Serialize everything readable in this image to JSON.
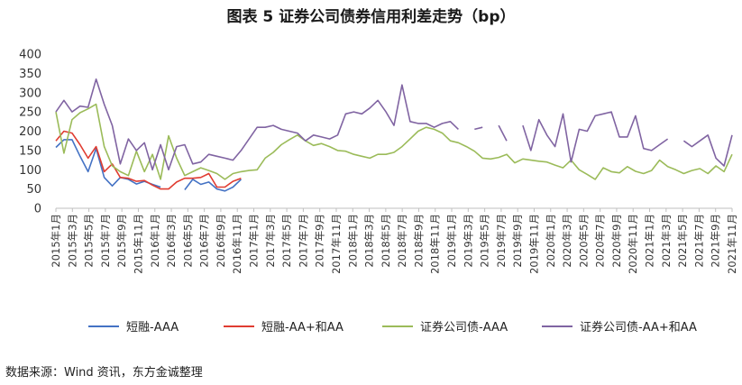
{
  "title": "图表 5  证券公司债券信用利差走势（bp）",
  "source": "数据来源：Wind 资讯，东方金诚整理",
  "chart_data": {
    "type": "line",
    "title": "图表 5  证券公司债券信用利差走势（bp）",
    "ylabel": "",
    "xlabel": "",
    "ylim": [
      0,
      400
    ],
    "yticks": [
      0,
      50,
      100,
      150,
      200,
      250,
      300,
      350,
      400
    ],
    "grid": false,
    "legend_position": "bottom",
    "x_tick_labels": [
      "2015年1月",
      "2015年3月",
      "2015年5月",
      "2015年7月",
      "2015年9月",
      "2015年11月",
      "2016年1月",
      "2016年3月",
      "2016年5月",
      "2016年7月",
      "2016年9月",
      "2016年11月",
      "2017年1月",
      "2017年3月",
      "2017年5月",
      "2017年7月",
      "2017年9月",
      "2017年11月",
      "2018年1月",
      "2018年3月",
      "2018年5月",
      "2018年7月",
      "2018年9月",
      "2018年11月",
      "2019年1月",
      "2019年3月",
      "2019年5月",
      "2019年7月",
      "2019年9月",
      "2019年11月",
      "2020年1月",
      "2020年3月",
      "2020年5月",
      "2020年7月",
      "2020年9月",
      "2020年11月",
      "2021年1月",
      "2021年3月",
      "2021年5月",
      "2021年7月",
      "2021年9月",
      "2021年11月"
    ],
    "series": [
      {
        "name": "短融-AAA",
        "color": "#4472C4",
        "values": [
          158,
          178,
          178,
          135,
          95,
          155,
          80,
          58,
          80,
          75,
          63,
          70,
          62,
          55,
          null,
          null,
          48,
          75,
          62,
          68,
          50,
          45,
          55,
          75,
          null,
          null,
          null,
          null,
          null,
          null,
          null,
          null,
          null,
          null,
          null,
          null,
          null,
          null,
          null,
          null,
          null,
          null,
          null,
          null,
          null,
          null,
          null,
          null,
          null,
          null,
          null,
          null,
          null,
          null,
          null,
          null,
          null,
          null,
          null,
          null,
          null,
          null,
          null,
          null,
          null,
          null,
          null,
          null,
          null,
          null,
          null,
          null,
          null,
          null,
          null,
          null,
          null,
          null,
          null,
          null,
          null,
          null,
          null,
          null,
          null
        ]
      },
      {
        "name": "短融-AA+和AA",
        "color": "#E03C31",
        "values": [
          175,
          200,
          195,
          165,
          130,
          160,
          95,
          115,
          80,
          78,
          70,
          72,
          60,
          50,
          50,
          68,
          78,
          78,
          80,
          90,
          55,
          55,
          70,
          78,
          null,
          null,
          null,
          null,
          null,
          null,
          null,
          null,
          null,
          null,
          null,
          null,
          null,
          null,
          null,
          null,
          null,
          null,
          null,
          null,
          null,
          null,
          null,
          null,
          null,
          null,
          null,
          null,
          null,
          null,
          null,
          null,
          null,
          null,
          null,
          null,
          null,
          null,
          null,
          null,
          null,
          null,
          null,
          null,
          null,
          null,
          null,
          null,
          null,
          null,
          null,
          null,
          null,
          null,
          null,
          null,
          null,
          null,
          null,
          null,
          null
        ]
      },
      {
        "name": "证券公司债-AAA",
        "color": "#9BBB59",
        "values": [
          250,
          143,
          230,
          248,
          258,
          270,
          160,
          110,
          95,
          85,
          148,
          95,
          140,
          75,
          188,
          130,
          85,
          95,
          105,
          98,
          90,
          75,
          90,
          95,
          98,
          100,
          130,
          145,
          165,
          178,
          190,
          175,
          163,
          168,
          160,
          150,
          148,
          140,
          135,
          130,
          140,
          140,
          145,
          160,
          180,
          200,
          210,
          205,
          195,
          175,
          170,
          160,
          148,
          130,
          128,
          132,
          140,
          118,
          128,
          125,
          122,
          120,
          112,
          105,
          125,
          100,
          88,
          75,
          105,
          95,
          92,
          108,
          96,
          90,
          98,
          125,
          108,
          100,
          90,
          98,
          103,
          90,
          110,
          95,
          140
        ]
      },
      {
        "name": "证券公司债-AA+和AA",
        "color": "#8064A2",
        "values": [
          250,
          280,
          250,
          265,
          262,
          335,
          270,
          215,
          115,
          180,
          150,
          170,
          100,
          165,
          100,
          160,
          165,
          115,
          120,
          140,
          135,
          130,
          125,
          150,
          180,
          210,
          210,
          215,
          205,
          200,
          195,
          175,
          190,
          185,
          180,
          190,
          245,
          250,
          245,
          260,
          280,
          250,
          215,
          320,
          225,
          220,
          220,
          210,
          220,
          225,
          205,
          null,
          205,
          210,
          null,
          215,
          175,
          null,
          215,
          150,
          230,
          190,
          160,
          245,
          120,
          205,
          200,
          240,
          245,
          250,
          185,
          185,
          240,
          155,
          150,
          165,
          180,
          null,
          175,
          160,
          175,
          190,
          130,
          110,
          190
        ]
      }
    ]
  },
  "legend": [
    {
      "label": "短融-AAA",
      "color": "#4472C4"
    },
    {
      "label": "短融-AA+和AA",
      "color": "#E03C31"
    },
    {
      "label": "证券公司债-AAA",
      "color": "#9BBB59"
    },
    {
      "label": "证券公司债-AA+和AA",
      "color": "#8064A2"
    }
  ]
}
